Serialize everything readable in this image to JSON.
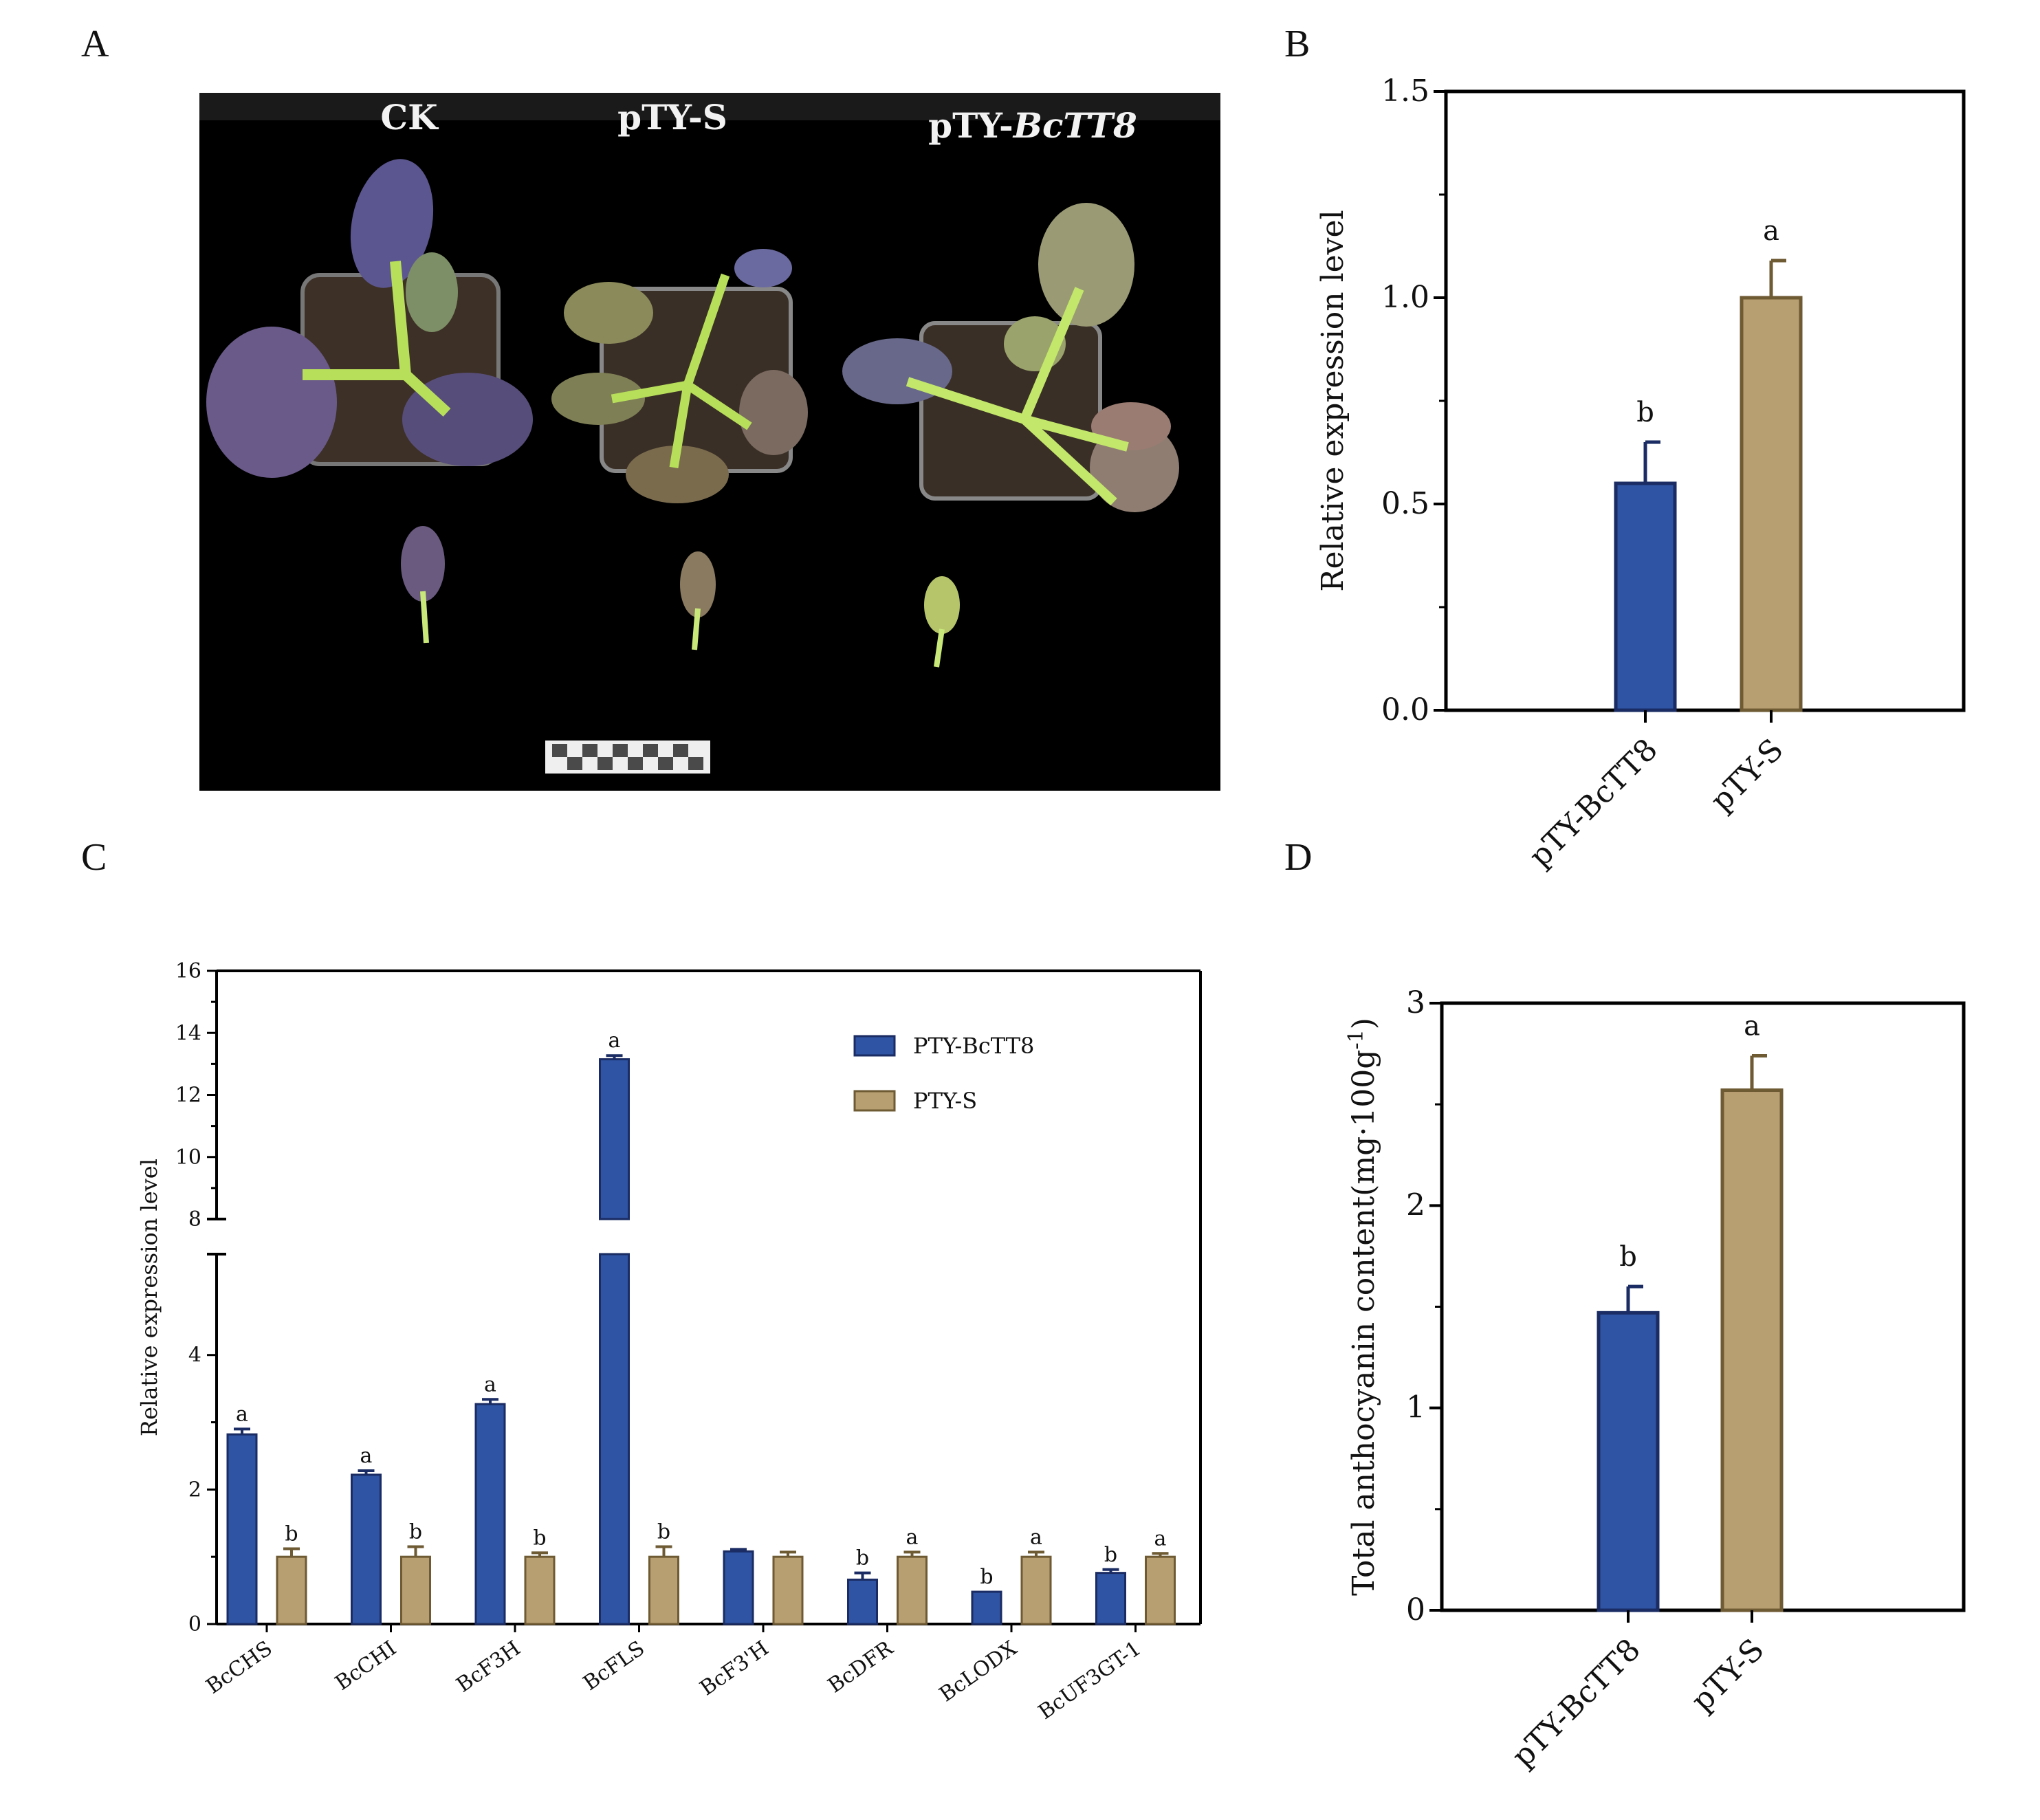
{
  "panels": {
    "A": "A",
    "B": "B",
    "C": "C",
    "D": "D"
  },
  "photo": {
    "labels": [
      "CK",
      "pTY-S",
      "pTY-"
    ],
    "label_italic": "BcTT8"
  },
  "colors": {
    "blue": "#2f54a3",
    "blue_edge": "#1a2c63",
    "tan": "#b89f72",
    "tan_edge": "#6e5a33",
    "photo_bg": "#000000"
  },
  "chart_data": [
    {
      "id": "B",
      "type": "bar",
      "categories": [
        "pTY-BcTT8",
        "pTY-S"
      ],
      "values": [
        0.55,
        1.0
      ],
      "errors": [
        0.1,
        0.09
      ],
      "significance": [
        "b",
        "a"
      ],
      "ylabel": "Relative expression level",
      "ylim": [
        0,
        1.5
      ],
      "yticks": [
        0.0,
        0.5,
        1.0,
        1.5
      ],
      "ytick_labels": [
        "0.0",
        "0.5",
        "1.0",
        "1.5"
      ]
    },
    {
      "id": "C",
      "type": "bar",
      "categories": [
        "BcCHS",
        "BcCHI",
        "BcF3H",
        "BcFLS",
        "BcF3'H",
        "BcDFR",
        "BcLODX",
        "BcUF3GT-1"
      ],
      "series": [
        {
          "name": "PTY-BcTT8",
          "values": [
            2.82,
            2.22,
            3.27,
            13.15,
            1.08,
            0.66,
            0.48,
            0.76
          ],
          "errors": [
            0.08,
            0.06,
            0.07,
            0.12,
            0.03,
            0.1,
            0.0,
            0.05
          ],
          "significance": [
            "a",
            "a",
            "a",
            "a",
            "",
            "b",
            "b",
            "b"
          ]
        },
        {
          "name": "PTY-S",
          "values": [
            1.0,
            1.0,
            1.0,
            1.0,
            1.0,
            1.0,
            1.0,
            1.0
          ],
          "errors": [
            0.12,
            0.15,
            0.06,
            0.15,
            0.07,
            0.07,
            0.07,
            0.05
          ],
          "significance": [
            "b",
            "b",
            "b",
            "b",
            "",
            "a",
            "a",
            "a"
          ]
        }
      ],
      "ylabel": "Relative expression level",
      "ylim": [
        0,
        16
      ],
      "axis_break": [
        5.5,
        8
      ],
      "yticks": [
        0,
        2,
        4,
        8,
        10,
        12,
        14,
        16
      ],
      "ytick_labels": [
        "0",
        "2",
        "4",
        "8",
        "10",
        "12",
        "14",
        "16"
      ],
      "legend": [
        "PTY-BcTT8",
        "PTY-S"
      ]
    },
    {
      "id": "D",
      "type": "bar",
      "categories": [
        "pTY-BcTT8",
        "pTY-S"
      ],
      "values": [
        1.47,
        2.57
      ],
      "errors": [
        0.13,
        0.17
      ],
      "significance": [
        "b",
        "a"
      ],
      "ylabel_main": "Total  anthocyanin content(mg·100g",
      "ylabel_sup": "-1",
      "ylabel_end": ")",
      "ylim": [
        0,
        3
      ],
      "yticks": [
        0,
        1,
        2,
        3
      ],
      "ytick_labels": [
        "0",
        "1",
        "2",
        "3"
      ]
    }
  ]
}
